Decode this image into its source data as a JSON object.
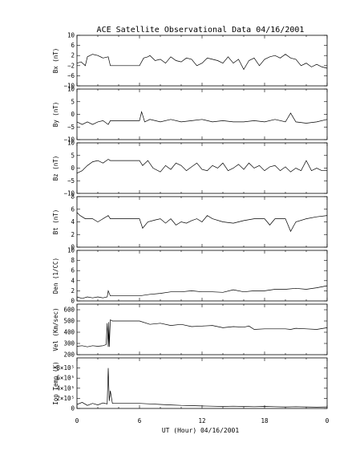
{
  "chart_data": {
    "type": "line",
    "title": "ACE Satellite Observational Data  04/16/2001",
    "xlabel": "UT (Hour)  04/16/2001",
    "x_ticks": [
      "0",
      "6",
      "12",
      "18",
      "0"
    ],
    "xlim": [
      0,
      24
    ],
    "panels": [
      {
        "name": "bx",
        "ylabel": "Bx (nT)",
        "ylim": [
          -10,
          10
        ],
        "y_ticks": [
          {
            "v": 10,
            "t": "10"
          },
          {
            "v": 6,
            "t": "6"
          },
          {
            "v": 2,
            "t": "2"
          },
          {
            "v": -2,
            "t": "−2"
          },
          {
            "v": -6,
            "t": "−6"
          },
          {
            "v": -10,
            "t": "−10"
          }
        ],
        "x": [
          0,
          0.4,
          0.8,
          1,
          1.5,
          2,
          2.5,
          3,
          3.2,
          6,
          6.4,
          6.8,
          7,
          7.5,
          8,
          8.5,
          9,
          9.5,
          10,
          10.5,
          11,
          11.5,
          12,
          12.5,
          13,
          13.5,
          14,
          14.5,
          15,
          15.5,
          16,
          16.5,
          17,
          17.5,
          18,
          18.5,
          19,
          19.5,
          20,
          20.5,
          21,
          21.5,
          22,
          22.5,
          23,
          23.5,
          24
        ],
        "values": [
          -1,
          -0.5,
          -2,
          1.5,
          2.5,
          2,
          1,
          1.5,
          -2,
          -2,
          1,
          1.5,
          2,
          0,
          0.5,
          -1,
          1.5,
          0,
          -0.5,
          1,
          0.5,
          -2,
          -1,
          1,
          0.5,
          0,
          -1,
          1.5,
          -1,
          0.5,
          -3.5,
          0,
          1,
          -2,
          0.5,
          1.5,
          2,
          1,
          2.5,
          1,
          0.5,
          -2,
          -1,
          -2.5,
          -1.5,
          -2.5,
          -3
        ]
      },
      {
        "name": "by",
        "ylabel": "By (nT)",
        "ylim": [
          -10,
          10
        ],
        "y_ticks": [
          {
            "v": 10,
            "t": "10"
          },
          {
            "v": 5,
            "t": "5"
          },
          {
            "v": 0,
            "t": "0"
          },
          {
            "v": -5,
            "t": "−5"
          },
          {
            "v": -10,
            "t": "−10"
          }
        ],
        "x": [
          0,
          0.5,
          1,
          1.5,
          2,
          2.5,
          3,
          3.2,
          6,
          6.2,
          6.5,
          7,
          8,
          9,
          10,
          11,
          12,
          13,
          14,
          15,
          16,
          17,
          18,
          19,
          20,
          20.5,
          21,
          22,
          23,
          24
        ],
        "values": [
          -3,
          -4,
          -3,
          -4,
          -3,
          -2.5,
          -4,
          -2.5,
          -2.5,
          1,
          -3,
          -2,
          -3,
          -2,
          -3,
          -2.5,
          -2,
          -3,
          -2.5,
          -3,
          -3,
          -2.5,
          -3,
          -2,
          -3,
          0.5,
          -3,
          -3.5,
          -3,
          -2
        ]
      },
      {
        "name": "bz",
        "ylabel": "Bz (nT)",
        "ylim": [
          -10,
          10
        ],
        "y_ticks": [
          {
            "v": 10,
            "t": "10"
          },
          {
            "v": 5,
            "t": "5"
          },
          {
            "v": 0,
            "t": "0"
          },
          {
            "v": -5,
            "t": "−5"
          },
          {
            "v": -10,
            "t": "−10"
          }
        ],
        "x": [
          0,
          0.5,
          1,
          1.5,
          2,
          2.5,
          3,
          3.2,
          6,
          6.3,
          6.8,
          7.3,
          8,
          8.5,
          9,
          9.5,
          10,
          10.5,
          11,
          11.5,
          12,
          12.5,
          13,
          13.5,
          14,
          14.5,
          15,
          15.5,
          16,
          16.5,
          17,
          17.5,
          18,
          18.5,
          19,
          19.5,
          20,
          20.5,
          21,
          21.5,
          22,
          22.5,
          23,
          23.5,
          24
        ],
        "values": [
          -2,
          -1,
          1,
          2.5,
          3,
          2,
          3.5,
          3,
          3,
          1,
          3,
          0,
          -1.5,
          1,
          -0.5,
          2,
          1,
          -1,
          0.5,
          2,
          -0.5,
          -1,
          1,
          0,
          2,
          -1,
          0,
          1.5,
          -0.5,
          2,
          0,
          1,
          -1,
          0.5,
          1,
          -1,
          0.5,
          -1.5,
          0,
          -1,
          3,
          -1,
          0,
          -1,
          -1
        ]
      },
      {
        "name": "bt",
        "ylabel": "Bt (nT)",
        "ylim": [
          0,
          8
        ],
        "y_ticks": [
          {
            "v": 8,
            "t": "8"
          },
          {
            "v": 6,
            "t": "6"
          },
          {
            "v": 4,
            "t": "4"
          },
          {
            "v": 2,
            "t": "2"
          },
          {
            "v": 0,
            "t": "0"
          }
        ],
        "x": [
          0,
          0.3,
          0.8,
          1.5,
          2,
          2.5,
          3,
          3.2,
          6,
          6.3,
          6.8,
          7.5,
          8,
          8.5,
          9,
          9.5,
          10,
          10.5,
          11,
          11.5,
          12,
          12.5,
          13,
          14,
          15,
          16,
          17,
          18,
          18.5,
          19,
          20,
          20.5,
          21,
          22,
          23,
          24
        ],
        "values": [
          5.5,
          5,
          4.5,
          4.5,
          4,
          4.5,
          5,
          4.5,
          4.5,
          3,
          4,
          4.3,
          4.5,
          3.8,
          4.5,
          3.5,
          4,
          3.8,
          4.2,
          4.5,
          4,
          5,
          4.5,
          4,
          3.8,
          4.2,
          4.5,
          4.5,
          3.5,
          4.5,
          4.5,
          2.5,
          4,
          4.5,
          4.8,
          5
        ]
      },
      {
        "name": "den",
        "ylabel": "Den (1/CC)",
        "ylim": [
          0,
          10
        ],
        "y_ticks": [
          {
            "v": 10,
            "t": "10"
          },
          {
            "v": 8,
            "t": "8"
          },
          {
            "v": 6,
            "t": "6"
          },
          {
            "v": 4,
            "t": "4"
          },
          {
            "v": 2,
            "t": "2"
          },
          {
            "v": 0,
            "t": "0"
          }
        ],
        "x": [
          0,
          0.5,
          1,
          1.5,
          2,
          2.5,
          2.9,
          3,
          3.2,
          6,
          7,
          8,
          9,
          10,
          11,
          12,
          13,
          14,
          15,
          16,
          17,
          18,
          19,
          20,
          21,
          22,
          23,
          24
        ],
        "values": [
          0.8,
          0.5,
          0.8,
          0.6,
          0.8,
          0.6,
          0.8,
          2,
          1,
          1,
          1.3,
          1.5,
          1.8,
          1.8,
          2,
          1.8,
          1.8,
          1.7,
          2.2,
          1.8,
          2,
          2,
          2.3,
          2.3,
          2.5,
          2.3,
          2.6,
          3
        ]
      },
      {
        "name": "vel",
        "ylabel": "Vel (Km/sec)",
        "ylim": [
          200,
          650
        ],
        "y_ticks": [
          {
            "v": 600,
            "t": "600"
          },
          {
            "v": 500,
            "t": "500"
          },
          {
            "v": 400,
            "t": "400"
          },
          {
            "v": 300,
            "t": "300"
          },
          {
            "v": 200,
            "t": "200"
          }
        ],
        "x": [
          0,
          0.5,
          1,
          1.5,
          2,
          2.5,
          2.8,
          2.9,
          3,
          3.05,
          3.1,
          3.2,
          3.4,
          6,
          7,
          8,
          9,
          10,
          11,
          12,
          13,
          14,
          15,
          16,
          16.5,
          17,
          18,
          19,
          20,
          20.5,
          21,
          22,
          23,
          24
        ],
        "values": [
          275,
          280,
          270,
          280,
          275,
          280,
          290,
          480,
          270,
          490,
          270,
          510,
          500,
          500,
          470,
          480,
          460,
          470,
          450,
          455,
          460,
          440,
          450,
          445,
          455,
          425,
          430,
          430,
          430,
          425,
          435,
          430,
          425,
          440
        ]
      },
      {
        "name": "temp",
        "ylabel": "Ion Temp (K)",
        "ylim": [
          0,
          1000000
        ],
        "y_ticks": [
          {
            "v": 800000,
            "t": "8×10⁵"
          },
          {
            "v": 600000,
            "t": "6×10⁵"
          },
          {
            "v": 400000,
            "t": "4×10⁵"
          },
          {
            "v": 200000,
            "t": "2×10⁵"
          },
          {
            "v": 0,
            "t": "0"
          }
        ],
        "x": [
          0,
          0.5,
          1,
          1.5,
          2,
          2.5,
          2.9,
          3.0,
          3.1,
          3.2,
          3.4,
          6,
          7,
          8,
          9,
          10,
          11,
          12,
          13,
          14,
          15,
          16,
          17,
          18,
          19,
          20,
          21,
          22,
          23,
          24
        ],
        "values": [
          80000,
          120000,
          60000,
          100000,
          70000,
          110000,
          90000,
          800000,
          150000,
          350000,
          100000,
          100000,
          90000,
          80000,
          70000,
          60000,
          55000,
          50000,
          45000,
          40000,
          45000,
          40000,
          35000,
          40000,
          35000,
          30000,
          35000,
          30000,
          25000,
          30000
        ]
      }
    ]
  }
}
